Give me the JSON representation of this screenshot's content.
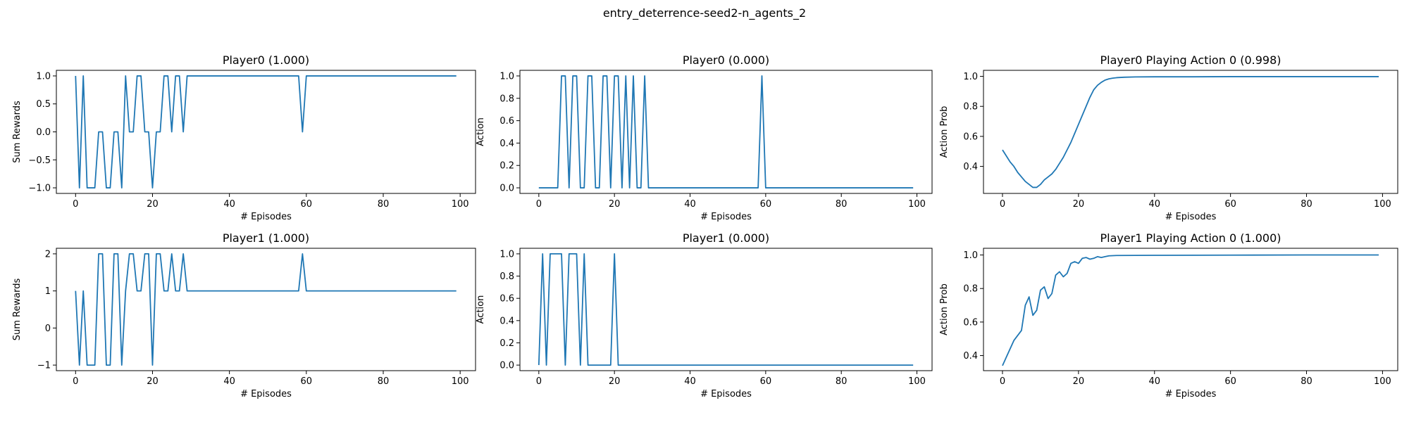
{
  "figure_title": "entry_deterrence-seed2-n_agents_2",
  "colors": {
    "line": "#1f77b4",
    "axis": "#000000"
  },
  "chart_data": [
    {
      "type": "line",
      "title": "Player0 (1.000)",
      "xlabel": "# Episodes",
      "ylabel": "Sum Rewards",
      "xlim": [
        -5,
        104
      ],
      "ylim": [
        -1.1,
        1.1
      ],
      "xticks": [
        0,
        20,
        40,
        60,
        80,
        100
      ],
      "yticks": [
        -1.0,
        -0.5,
        0.0,
        0.5,
        1.0
      ],
      "ytick_labels": [
        "−1.0",
        "−0.5",
        "0.0",
        "0.5",
        "1.0"
      ],
      "series": [
        {
          "x": [
            0,
            1,
            2,
            3,
            4,
            5,
            6,
            7,
            8,
            9,
            10,
            11,
            12,
            13,
            14,
            15,
            16,
            17,
            18,
            19,
            20,
            21,
            22,
            23,
            24,
            25,
            26,
            27,
            28,
            29,
            30,
            58,
            59,
            60,
            99
          ],
          "values": [
            1,
            -1,
            1,
            -1,
            -1,
            -1,
            0,
            0,
            -1,
            -1,
            0,
            0,
            -1,
            1,
            0,
            0,
            1,
            1,
            0,
            0,
            -1,
            0,
            0,
            1,
            1,
            0,
            1,
            1,
            0,
            1,
            1,
            1,
            0,
            1,
            1
          ]
        }
      ]
    },
    {
      "type": "line",
      "title": "Player0 (0.000)",
      "xlabel": "# Episodes",
      "ylabel": "Action",
      "xlim": [
        -5,
        104
      ],
      "ylim": [
        -0.05,
        1.05
      ],
      "xticks": [
        0,
        20,
        40,
        60,
        80,
        100
      ],
      "yticks": [
        0.0,
        0.2,
        0.4,
        0.6,
        0.8,
        1.0
      ],
      "ytick_labels": [
        "0.0",
        "0.2",
        "0.4",
        "0.6",
        "0.8",
        "1.0"
      ],
      "series": [
        {
          "x": [
            0,
            5,
            6,
            7,
            8,
            9,
            10,
            11,
            12,
            13,
            14,
            15,
            16,
            17,
            18,
            19,
            20,
            21,
            22,
            23,
            24,
            25,
            26,
            27,
            28,
            29,
            58,
            59,
            60,
            99
          ],
          "values": [
            0,
            0,
            1,
            1,
            0,
            1,
            1,
            0,
            0,
            1,
            1,
            0,
            0,
            1,
            1,
            0,
            1,
            1,
            0,
            1,
            0,
            1,
            0,
            0,
            1,
            0,
            0,
            1,
            0,
            0
          ]
        }
      ]
    },
    {
      "type": "line",
      "title": "Player0 Playing Action 0 (0.998)",
      "xlabel": "# Episodes",
      "ylabel": "Action Prob",
      "xlim": [
        -5,
        104
      ],
      "ylim": [
        0.22,
        1.04
      ],
      "xticks": [
        0,
        20,
        40,
        60,
        80,
        100
      ],
      "yticks": [
        0.4,
        0.6,
        0.8,
        1.0
      ],
      "ytick_labels": [
        "0.4",
        "0.6",
        "0.8",
        "1.0"
      ],
      "series": [
        {
          "x": [
            0,
            1,
            2,
            3,
            4,
            5,
            6,
            7,
            8,
            9,
            10,
            11,
            12,
            13,
            14,
            15,
            16,
            17,
            18,
            19,
            20,
            21,
            22,
            23,
            24,
            25,
            26,
            27,
            28,
            29,
            30,
            32,
            35,
            40,
            50,
            60,
            70,
            80,
            99
          ],
          "values": [
            0.51,
            0.47,
            0.43,
            0.4,
            0.36,
            0.33,
            0.3,
            0.28,
            0.26,
            0.26,
            0.28,
            0.31,
            0.33,
            0.35,
            0.38,
            0.42,
            0.46,
            0.51,
            0.56,
            0.62,
            0.68,
            0.74,
            0.8,
            0.86,
            0.91,
            0.94,
            0.96,
            0.975,
            0.983,
            0.988,
            0.991,
            0.994,
            0.996,
            0.997,
            0.997,
            0.998,
            0.998,
            0.998,
            0.998
          ]
        }
      ]
    },
    {
      "type": "line",
      "title": "Player1 (1.000)",
      "xlabel": "# Episodes",
      "ylabel": "Sum Rewards",
      "xlim": [
        -5,
        104
      ],
      "ylim": [
        -1.15,
        2.15
      ],
      "xticks": [
        0,
        20,
        40,
        60,
        80,
        100
      ],
      "yticks": [
        -1,
        0,
        1,
        2
      ],
      "ytick_labels": [
        "−1",
        "0",
        "1",
        "2"
      ],
      "series": [
        {
          "x": [
            0,
            1,
            2,
            3,
            4,
            5,
            6,
            7,
            8,
            9,
            10,
            11,
            12,
            13,
            14,
            15,
            16,
            17,
            18,
            19,
            20,
            21,
            22,
            23,
            24,
            25,
            26,
            27,
            28,
            29,
            58,
            59,
            60,
            99
          ],
          "values": [
            1,
            -1,
            1,
            -1,
            -1,
            -1,
            2,
            2,
            -1,
            -1,
            2,
            2,
            -1,
            1,
            2,
            2,
            1,
            1,
            2,
            2,
            -1,
            2,
            2,
            1,
            1,
            2,
            1,
            1,
            2,
            1,
            1,
            2,
            1,
            1
          ]
        }
      ]
    },
    {
      "type": "line",
      "title": "Player1 (0.000)",
      "xlabel": "# Episodes",
      "ylabel": "Action",
      "xlim": [
        -5,
        104
      ],
      "ylim": [
        -0.05,
        1.05
      ],
      "xticks": [
        0,
        20,
        40,
        60,
        80,
        100
      ],
      "yticks": [
        0.0,
        0.2,
        0.4,
        0.6,
        0.8,
        1.0
      ],
      "ytick_labels": [
        "0.0",
        "0.2",
        "0.4",
        "0.6",
        "0.8",
        "1.0"
      ],
      "series": [
        {
          "x": [
            0,
            1,
            2,
            3,
            4,
            5,
            6,
            7,
            8,
            9,
            10,
            11,
            12,
            13,
            19,
            20,
            21,
            99
          ],
          "values": [
            0,
            1,
            0,
            1,
            1,
            1,
            1,
            0,
            1,
            1,
            1,
            0,
            1,
            0,
            0,
            1,
            0,
            0
          ]
        }
      ]
    },
    {
      "type": "line",
      "title": "Player1 Playing Action 0 (1.000)",
      "xlabel": "# Episodes",
      "ylabel": "Action Prob",
      "xlim": [
        -5,
        104
      ],
      "ylim": [
        0.31,
        1.04
      ],
      "xticks": [
        0,
        20,
        40,
        60,
        80,
        100
      ],
      "yticks": [
        0.4,
        0.6,
        0.8,
        1.0
      ],
      "ytick_labels": [
        "0.4",
        "0.6",
        "0.8",
        "1.0"
      ],
      "series": [
        {
          "x": [
            0,
            1,
            2,
            3,
            4,
            5,
            6,
            7,
            8,
            9,
            10,
            11,
            12,
            13,
            14,
            15,
            16,
            17,
            18,
            19,
            20,
            21,
            22,
            23,
            24,
            25,
            26,
            27,
            28,
            30,
            40,
            60,
            80,
            99
          ],
          "values": [
            0.34,
            0.39,
            0.44,
            0.49,
            0.52,
            0.55,
            0.7,
            0.75,
            0.64,
            0.67,
            0.79,
            0.81,
            0.74,
            0.77,
            0.88,
            0.9,
            0.87,
            0.89,
            0.95,
            0.96,
            0.95,
            0.98,
            0.985,
            0.975,
            0.98,
            0.99,
            0.985,
            0.99,
            0.995,
            0.997,
            0.998,
            0.999,
            1.0,
            1.0
          ]
        }
      ]
    }
  ]
}
